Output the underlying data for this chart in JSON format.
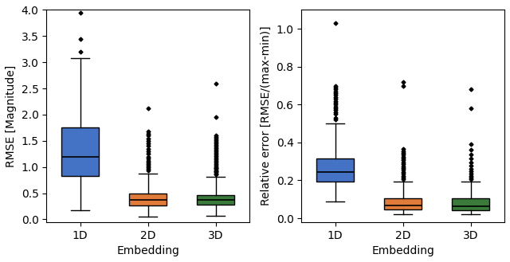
{
  "left_plot": {
    "ylabel": "RMSE [Magnitude]",
    "xlabel": "Embedding",
    "ylim": [
      -0.05,
      4.0
    ],
    "yticks": [
      0.0,
      0.5,
      1.0,
      1.5,
      2.0,
      2.5,
      3.0,
      3.5,
      4.0
    ],
    "categories": [
      "1D",
      "2D",
      "3D"
    ],
    "colors": [
      "#4472c4",
      "#e07b39",
      "#3a7a3a"
    ],
    "boxes": [
      {
        "q1": 0.83,
        "median": 1.2,
        "q3": 1.76,
        "whislo": 0.18,
        "whishi": 3.08,
        "fliers": [
          3.2,
          3.44,
          3.95
        ]
      },
      {
        "q1": 0.26,
        "median": 0.37,
        "q3": 0.5,
        "whislo": 0.05,
        "whishi": 0.88,
        "fliers": [
          0.93,
          0.96,
          0.99,
          1.02,
          1.05,
          1.08,
          1.12,
          1.16,
          1.2,
          1.25,
          1.3,
          1.35,
          1.4,
          1.45,
          1.5,
          1.55,
          1.6,
          1.64,
          1.68,
          2.12
        ]
      },
      {
        "q1": 0.28,
        "median": 0.37,
        "q3": 0.47,
        "whislo": 0.07,
        "whishi": 0.82,
        "fliers": [
          0.86,
          0.88,
          0.9,
          0.92,
          0.94,
          0.96,
          0.98,
          1.0,
          1.03,
          1.06,
          1.09,
          1.12,
          1.15,
          1.18,
          1.21,
          1.24,
          1.27,
          1.3,
          1.33,
          1.36,
          1.39,
          1.42,
          1.45,
          1.48,
          1.51,
          1.54,
          1.57,
          1.6,
          1.95,
          2.6
        ]
      }
    ]
  },
  "right_plot": {
    "ylabel": "Relative error [RMSE/(max-min)]",
    "xlabel": "Embedding",
    "ylim": [
      -0.02,
      1.1
    ],
    "yticks": [
      0.0,
      0.2,
      0.4,
      0.6,
      0.8,
      1.0
    ],
    "categories": [
      "1D",
      "2D",
      "3D"
    ],
    "colors": [
      "#4472c4",
      "#e07b39",
      "#3a7a3a"
    ],
    "boxes": [
      {
        "q1": 0.195,
        "median": 0.245,
        "q3": 0.315,
        "whislo": 0.09,
        "whishi": 0.5,
        "fliers": [
          0.52,
          0.53,
          0.55,
          0.56,
          0.57,
          0.58,
          0.59,
          0.6,
          0.61,
          0.62,
          0.63,
          0.64,
          0.65,
          0.66,
          0.67,
          0.68,
          0.69,
          0.7,
          1.03
        ]
      },
      {
        "q1": 0.045,
        "median": 0.068,
        "q3": 0.105,
        "whislo": 0.022,
        "whishi": 0.195,
        "fliers": [
          0.205,
          0.215,
          0.225,
          0.235,
          0.245,
          0.255,
          0.265,
          0.275,
          0.285,
          0.295,
          0.305,
          0.315,
          0.325,
          0.335,
          0.345,
          0.355,
          0.365,
          0.7,
          0.72
        ]
      },
      {
        "q1": 0.043,
        "median": 0.065,
        "q3": 0.105,
        "whislo": 0.02,
        "whishi": 0.195,
        "fliers": [
          0.205,
          0.215,
          0.225,
          0.235,
          0.248,
          0.262,
          0.278,
          0.295,
          0.315,
          0.335,
          0.36,
          0.39,
          0.58,
          0.68
        ]
      }
    ]
  }
}
